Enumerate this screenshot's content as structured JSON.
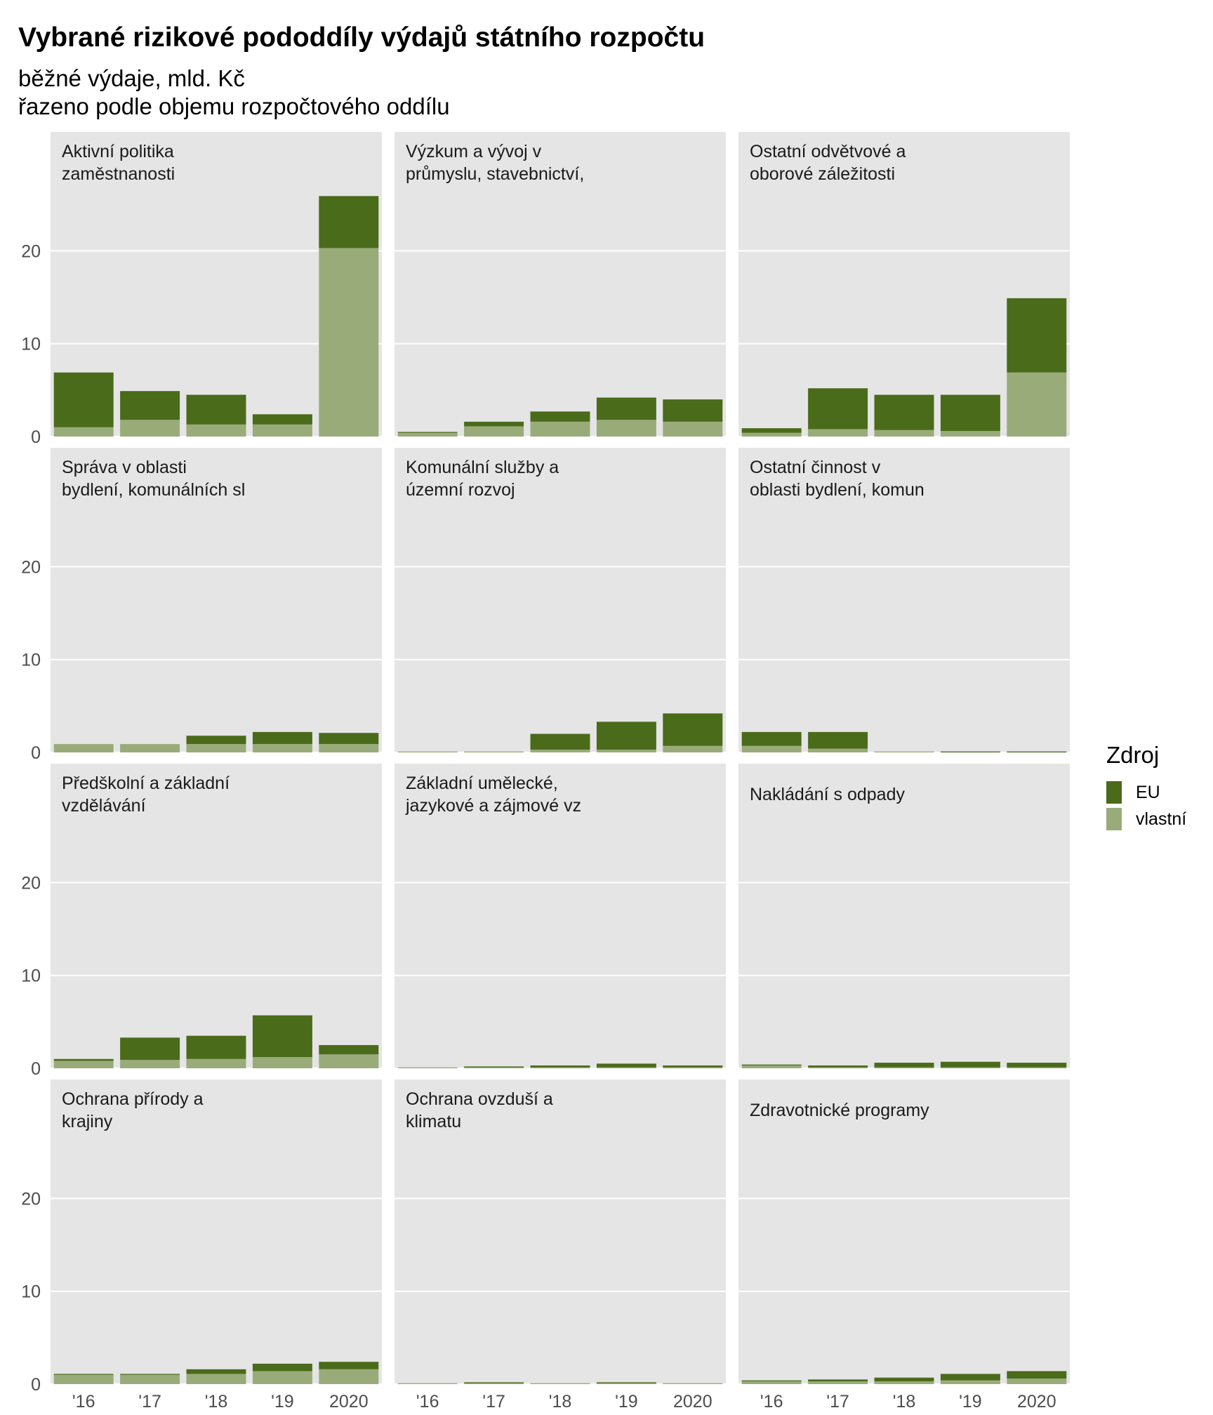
{
  "title": "Vybrané rizikové pododdíly výdajů státního rozpočtu",
  "subtitle_line1": "běžné výdaje, mld. Kč",
  "subtitle_line2": "řazeno podle objemu rozpočtového oddílu",
  "legend": {
    "title": "Zdroj",
    "items": [
      {
        "label": "EU",
        "color": "#4a6b1a"
      },
      {
        "label": "vlastní",
        "color": "#9aab7a"
      }
    ]
  },
  "chart_data": {
    "type": "bar",
    "stacked": true,
    "facets": 12,
    "categories": [
      "'16",
      "'17",
      "'18",
      "'19",
      "2020"
    ],
    "y_ticks": [
      0,
      10,
      20
    ],
    "ylim": [
      0,
      28
    ],
    "series_order": [
      "vlastní",
      "EU"
    ],
    "panels": [
      {
        "title": [
          "Aktivní politika",
          "zaměstnanosti"
        ],
        "series": [
          {
            "name": "vlastní",
            "values": [
              1.0,
              1.8,
              1.3,
              1.3,
              20.3
            ]
          },
          {
            "name": "EU",
            "values": [
              5.9,
              3.1,
              3.2,
              1.1,
              5.6
            ]
          }
        ]
      },
      {
        "title": [
          "Výzkum a vývoj v",
          "průmyslu, stavebnictví,"
        ],
        "series": [
          {
            "name": "vlastní",
            "values": [
              0.4,
              1.1,
              1.6,
              1.8,
              1.6
            ]
          },
          {
            "name": "EU",
            "values": [
              0.1,
              0.5,
              1.1,
              2.4,
              2.4
            ]
          }
        ]
      },
      {
        "title": [
          "Ostatní odvětvové a",
          "oborové záležitosti"
        ],
        "series": [
          {
            "name": "vlastní",
            "values": [
              0.4,
              0.8,
              0.7,
              0.6,
              6.9
            ]
          },
          {
            "name": "EU",
            "values": [
              0.5,
              4.4,
              3.8,
              3.9,
              8.0
            ]
          }
        ]
      },
      {
        "title": [
          "Správa v oblasti",
          "bydlení, komunálních sl"
        ],
        "series": [
          {
            "name": "vlastní",
            "values": [
              0.9,
              0.9,
              0.9,
              0.9,
              0.9
            ]
          },
          {
            "name": "EU",
            "values": [
              0.0,
              0.0,
              0.9,
              1.3,
              1.2
            ]
          }
        ]
      },
      {
        "title": [
          "Komunální služby a",
          "územní rozvoj"
        ],
        "series": [
          {
            "name": "vlastní",
            "values": [
              0.1,
              0.1,
              0.3,
              0.3,
              0.7
            ]
          },
          {
            "name": "EU",
            "values": [
              0.0,
              0.0,
              1.7,
              3.0,
              3.5
            ]
          }
        ]
      },
      {
        "title": [
          "Ostatní činnost v",
          "oblasti bydlení, komun"
        ],
        "series": [
          {
            "name": "vlastní",
            "values": [
              0.7,
              0.4,
              0.1,
              0.0,
              0.0
            ]
          },
          {
            "name": "EU",
            "values": [
              1.5,
              1.8,
              0.0,
              0.1,
              0.1
            ]
          }
        ]
      },
      {
        "title": [
          "Předškolní a základní",
          "vzdělávání"
        ],
        "series": [
          {
            "name": "vlastní",
            "values": [
              0.8,
              0.9,
              1.0,
              1.2,
              1.5
            ]
          },
          {
            "name": "EU",
            "values": [
              0.2,
              2.4,
              2.5,
              4.5,
              1.0
            ]
          }
        ]
      },
      {
        "title": [
          "Základní umělecké,",
          "jazykové a zájmové vz"
        ],
        "series": [
          {
            "name": "vlastní",
            "values": [
              0.1,
              0.1,
              0.1,
              0.1,
              0.1
            ]
          },
          {
            "name": "EU",
            "values": [
              0.0,
              0.1,
              0.2,
              0.4,
              0.2
            ]
          }
        ]
      },
      {
        "title": [
          "Nakládání s odpady"
        ],
        "series": [
          {
            "name": "vlastní",
            "values": [
              0.3,
              0.1,
              0.1,
              0.1,
              0.1
            ]
          },
          {
            "name": "EU",
            "values": [
              0.1,
              0.2,
              0.5,
              0.6,
              0.5
            ]
          }
        ]
      },
      {
        "title": [
          "Ochrana přírody a",
          "krajiny"
        ],
        "series": [
          {
            "name": "vlastní",
            "values": [
              1.0,
              1.0,
              1.1,
              1.4,
              1.6
            ]
          },
          {
            "name": "EU",
            "values": [
              0.1,
              0.1,
              0.5,
              0.8,
              0.8
            ]
          }
        ]
      },
      {
        "title": [
          "Ochrana ovzduší a",
          "klimatu"
        ],
        "series": [
          {
            "name": "vlastní",
            "values": [
              0.1,
              0.1,
              0.1,
              0.1,
              0.1
            ]
          },
          {
            "name": "EU",
            "values": [
              0.0,
              0.1,
              0.0,
              0.1,
              0.0
            ]
          }
        ]
      },
      {
        "title": [
          "Zdravotnické programy"
        ],
        "series": [
          {
            "name": "vlastní",
            "values": [
              0.3,
              0.3,
              0.3,
              0.4,
              0.6
            ]
          },
          {
            "name": "EU",
            "values": [
              0.1,
              0.2,
              0.4,
              0.7,
              0.8
            ]
          }
        ]
      }
    ]
  }
}
